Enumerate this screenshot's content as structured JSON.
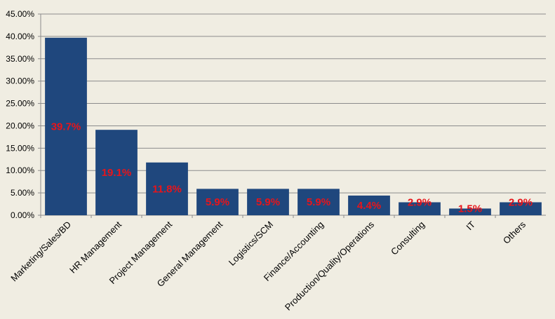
{
  "colors": {
    "background": "#f0ede2",
    "bar": "#1f477d",
    "gridline": "#8c8c8c",
    "data_label": "#e8141a"
  },
  "chart_data": {
    "type": "bar",
    "title": "",
    "xlabel": "",
    "ylabel": "",
    "categories": [
      "Marketing/Sales/BD",
      "HR Management",
      "Project Management",
      "General Management",
      "Logistics/SCM",
      "Finance/Accounting",
      "Production/Quality/Operations",
      "Consulting",
      "IT",
      "Others"
    ],
    "values": [
      39.7,
      19.1,
      11.8,
      5.9,
      5.9,
      5.9,
      4.4,
      2.9,
      1.5,
      2.9
    ],
    "data_labels": [
      "39.7%",
      "19.1%",
      "11.8%",
      "5.9%",
      "5.9%",
      "5.9%",
      "4.4%",
      "2.9%",
      "1.5%",
      "2.9%"
    ],
    "ylim": [
      0,
      45
    ],
    "yticks": [
      0,
      5,
      10,
      15,
      20,
      25,
      30,
      35,
      40,
      45
    ],
    "ytick_labels": [
      "0.00%",
      "5.00%",
      "10.00%",
      "15.00%",
      "20.00%",
      "25.00%",
      "30.00%",
      "35.00%",
      "40.00%",
      "45.00%"
    ],
    "grid": true,
    "legend": "none"
  }
}
